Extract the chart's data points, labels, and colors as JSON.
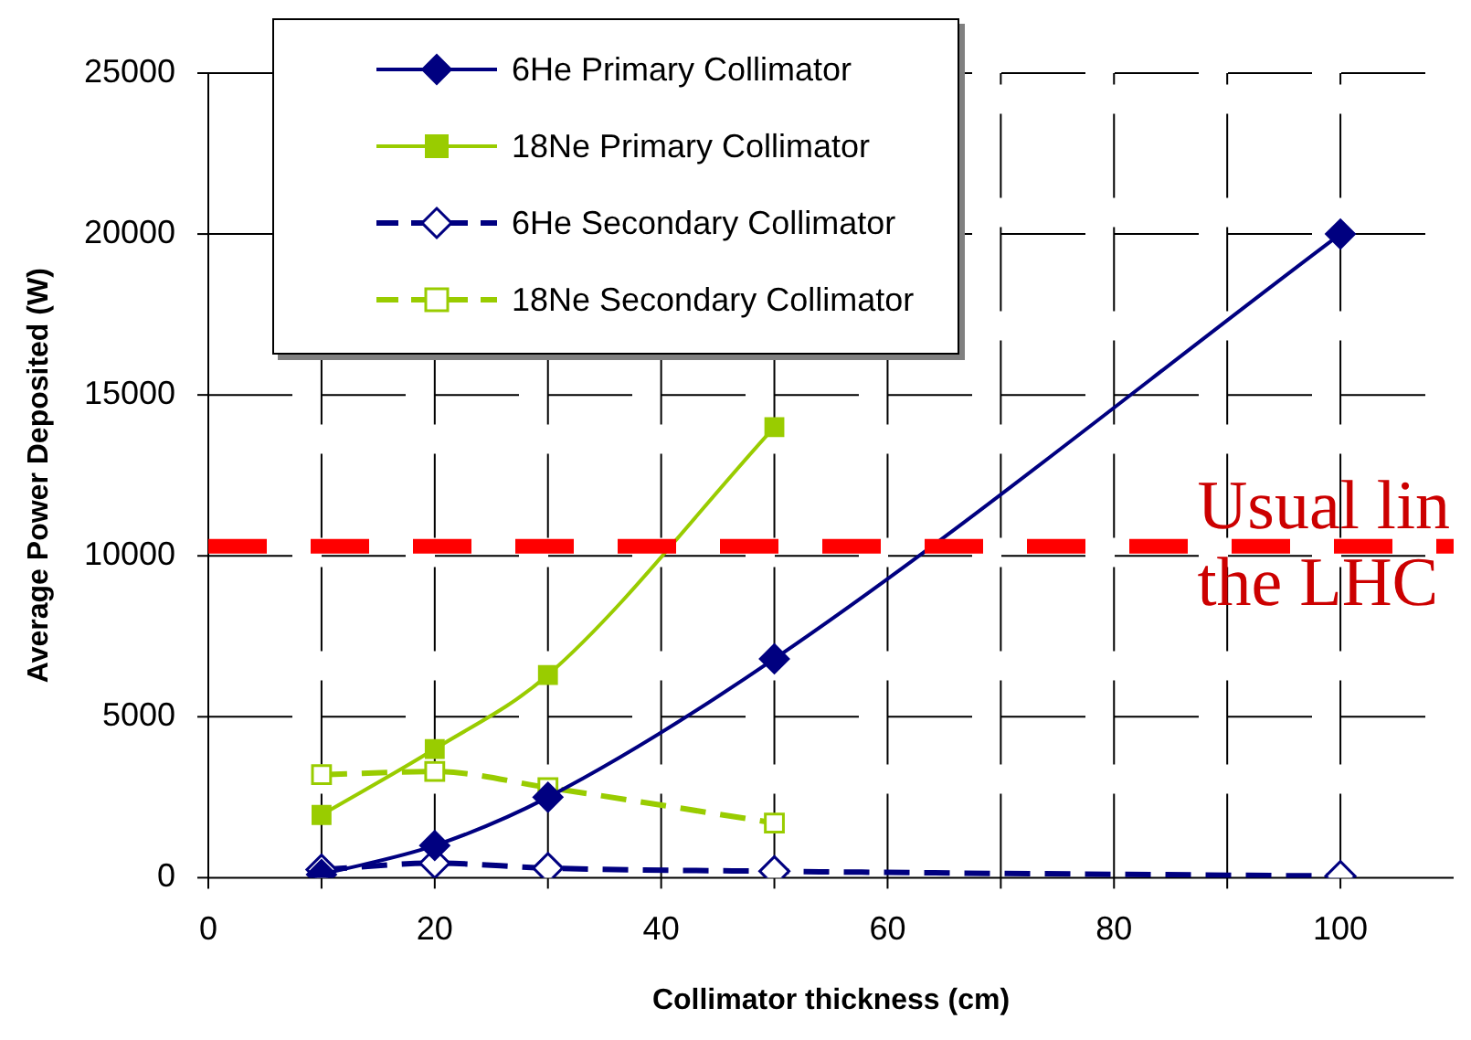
{
  "chart_data": {
    "type": "line",
    "xlabel": "Collimator thickness (cm)",
    "ylabel": "Average Power Deposited (W)",
    "x": [
      10,
      20,
      30,
      50,
      100
    ],
    "xlim": [
      0,
      110
    ],
    "xticks": [
      0,
      {
        "value": 10,
        "label": null
      },
      20,
      {
        "value": 30,
        "label": null
      },
      40,
      {
        "value": 50,
        "label": null
      },
      60,
      {
        "value": 70,
        "label": null
      },
      80,
      {
        "value": 90,
        "label": null
      },
      100
    ],
    "ylim": [
      0,
      25000
    ],
    "yticks": [
      0,
      5000,
      10000,
      15000,
      20000,
      25000
    ],
    "grid": true,
    "legend": "top left",
    "series": [
      {
        "name": "6He Primary Collimator",
        "color": "#000080",
        "marker": "diamond",
        "line_style": "solid",
        "values": [
          100,
          1000,
          2500,
          6800,
          20000
        ]
      },
      {
        "name": "18Ne Primary Collimator",
        "color": "#99cc00",
        "marker": "square",
        "line_style": "solid",
        "x": [
          10,
          20,
          30,
          50
        ],
        "values": [
          1950,
          4000,
          6300,
          14000
        ]
      },
      {
        "name": "6He Secondary Collimator",
        "color": "#000080",
        "marker": "diamond",
        "line_style": "dashed",
        "values": [
          250,
          450,
          300,
          200,
          50
        ]
      },
      {
        "name": "18Ne Secondary Collimator",
        "color": "#99cc00",
        "marker": "square",
        "line_style": "dashed",
        "x": [
          10,
          20,
          30,
          50
        ],
        "values": [
          3200,
          3300,
          2800,
          1700
        ]
      }
    ],
    "ref_lines": [
      {
        "axis": "y",
        "value": 10300,
        "label": "Usual lin\nthe LHC",
        "color": "#ff0000",
        "line_style": "dashed"
      }
    ]
  }
}
